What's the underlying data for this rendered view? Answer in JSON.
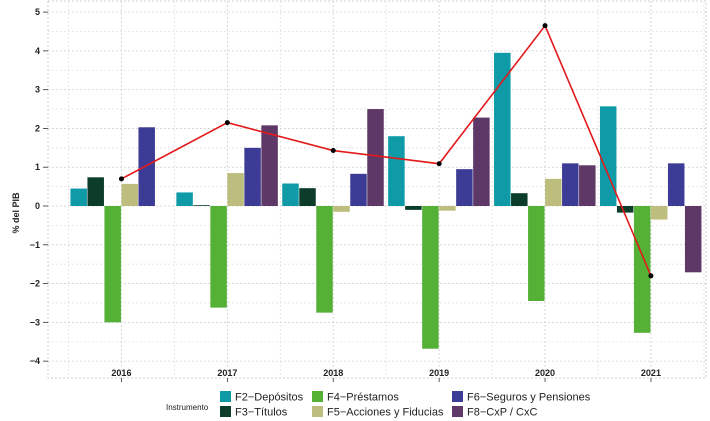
{
  "chart_data": {
    "type": "bar",
    "categories": [
      "2016",
      "2017",
      "2018",
      "2019",
      "2020",
      "2021"
    ],
    "ylabel": "% del PIB",
    "xlabel": "",
    "ylim": [
      -4,
      5
    ],
    "yticks": [
      5,
      4,
      3,
      2,
      1,
      0,
      -1,
      -2,
      -3,
      -4
    ],
    "grid": true,
    "legend_title": "Instrumento",
    "legend_position": "bottom",
    "series": [
      {
        "name": "F2−Depósitos",
        "color": "#0E9AA7",
        "values": [
          0.45,
          0.35,
          0.58,
          1.8,
          3.95,
          2.57
        ]
      },
      {
        "name": "F3−Títulos",
        "color": "#0B3D2A",
        "values": [
          0.74,
          0.02,
          0.46,
          -0.1,
          0.33,
          -0.17
        ]
      },
      {
        "name": "F4−Préstamos",
        "color": "#55B036",
        "values": [
          -3.0,
          -2.62,
          -2.75,
          -3.68,
          -2.45,
          -3.27
        ]
      },
      {
        "name": "F5−Acciones y Fiducias",
        "color": "#BDBE7D",
        "values": [
          0.57,
          0.85,
          -0.15,
          -0.12,
          0.7,
          -0.35
        ]
      },
      {
        "name": "F6−Seguros y Pensiones",
        "color": "#3C3C96",
        "values": [
          2.03,
          1.5,
          0.83,
          0.95,
          1.1,
          1.1
        ]
      },
      {
        "name": "F8−CxP / CxC",
        "color": "#5E3866",
        "values": [
          0.0,
          2.08,
          2.5,
          2.28,
          1.05,
          -1.71
        ]
      }
    ],
    "line": {
      "color": "#E3191C",
      "values": [
        0.7,
        2.15,
        1.43,
        1.09,
        4.65,
        -1.8
      ]
    }
  }
}
